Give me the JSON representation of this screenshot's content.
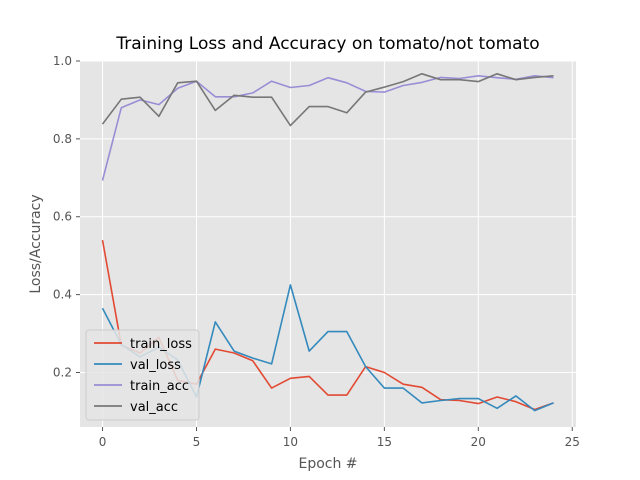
{
  "chart_data": {
    "type": "line",
    "title": "Training Loss and Accuracy on tomato/not tomato",
    "xlabel": "Epoch #",
    "ylabel": "Loss/Accuracy",
    "xlim": [
      -1.2,
      25.2
    ],
    "ylim": [
      0.06,
      1.0
    ],
    "xticks": [
      0,
      5,
      10,
      15,
      20,
      25
    ],
    "yticks": [
      0.2,
      0.4,
      0.6,
      0.8,
      1.0
    ],
    "x_tick_labels": [
      "0",
      "5",
      "10",
      "15",
      "20",
      "25"
    ],
    "y_tick_labels": [
      "0.2",
      "0.4",
      "0.6",
      "0.8",
      "1.0"
    ],
    "grid": true,
    "legend_position": "lower-left",
    "x": [
      0,
      1,
      2,
      3,
      4,
      5,
      6,
      7,
      8,
      9,
      10,
      11,
      12,
      13,
      14,
      15,
      16,
      17,
      18,
      19,
      20,
      21,
      22,
      23,
      24
    ],
    "series": [
      {
        "name": "train_loss",
        "color": "#E24A33",
        "values": [
          0.54,
          0.27,
          0.25,
          0.29,
          0.18,
          0.17,
          0.26,
          0.25,
          0.23,
          0.16,
          0.185,
          0.19,
          0.142,
          0.142,
          0.215,
          0.2,
          0.17,
          0.162,
          0.13,
          0.128,
          0.12,
          0.137,
          0.125,
          0.105,
          0.122
        ]
      },
      {
        "name": "val_loss",
        "color": "#348ABD",
        "values": [
          0.365,
          0.272,
          0.24,
          0.265,
          0.232,
          0.137,
          0.33,
          0.255,
          0.237,
          0.222,
          0.425,
          0.255,
          0.305,
          0.305,
          0.215,
          0.16,
          0.16,
          0.122,
          0.128,
          0.133,
          0.133,
          0.108,
          0.14,
          0.102,
          0.122
        ]
      },
      {
        "name": "train_acc",
        "color": "#988ED5",
        "values": [
          0.693,
          0.88,
          0.9,
          0.888,
          0.93,
          0.948,
          0.908,
          0.908,
          0.918,
          0.948,
          0.932,
          0.937,
          0.957,
          0.944,
          0.922,
          0.92,
          0.937,
          0.945,
          0.958,
          0.955,
          0.962,
          0.957,
          0.953,
          0.962,
          0.957
        ]
      },
      {
        "name": "val_acc",
        "color": "#777777",
        "values": [
          0.838,
          0.902,
          0.907,
          0.858,
          0.944,
          0.948,
          0.873,
          0.912,
          0.907,
          0.907,
          0.834,
          0.883,
          0.883,
          0.867,
          0.92,
          0.933,
          0.947,
          0.967,
          0.952,
          0.952,
          0.947,
          0.967,
          0.952,
          0.958,
          0.962
        ]
      }
    ]
  }
}
